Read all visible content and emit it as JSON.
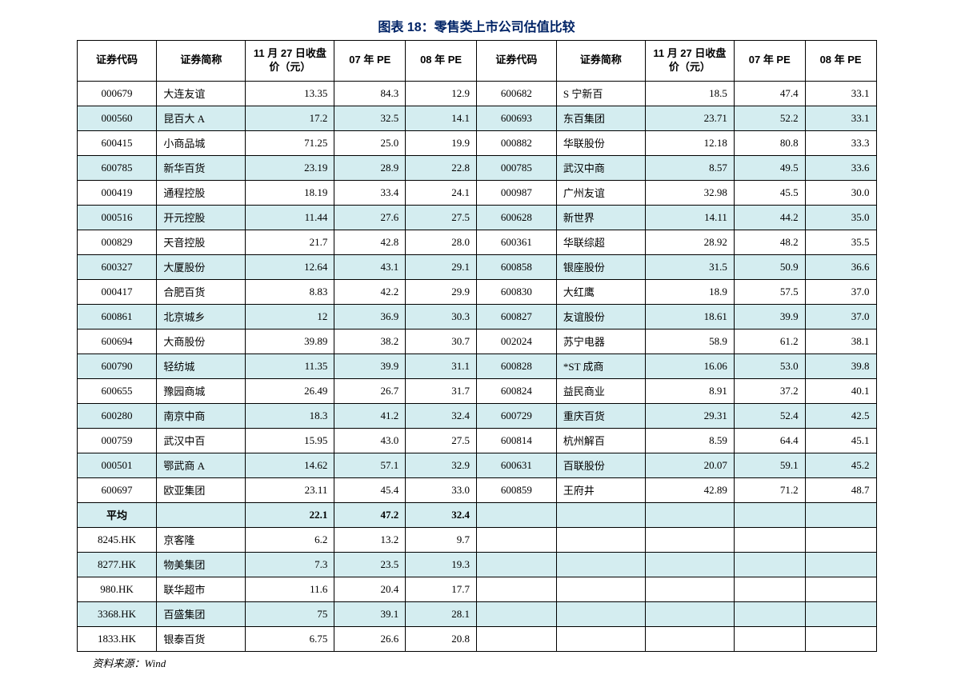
{
  "title": "图表 18：零售类上市公司估值比较",
  "source": "资料来源：Wind",
  "headers": {
    "code": "证券代码",
    "name": "证券简称",
    "price": "11 月 27 日收盘价（元）",
    "pe07": "07 年 PE",
    "pe08": "08 年 PE"
  },
  "rows": [
    [
      "000679",
      "大连友谊",
      "13.35",
      "84.3",
      "12.9",
      "600682",
      "S 宁新百",
      "18.5",
      "47.4",
      "33.1"
    ],
    [
      "000560",
      "昆百大 A",
      "17.2",
      "32.5",
      "14.1",
      "600693",
      "东百集团",
      "23.71",
      "52.2",
      "33.1"
    ],
    [
      "600415",
      "小商品城",
      "71.25",
      "25.0",
      "19.9",
      "000882",
      "华联股份",
      "12.18",
      "80.8",
      "33.3"
    ],
    [
      "600785",
      "新华百货",
      "23.19",
      "28.9",
      "22.8",
      "000785",
      "武汉中商",
      "8.57",
      "49.5",
      "33.6"
    ],
    [
      "000419",
      "通程控股",
      "18.19",
      "33.4",
      "24.1",
      "000987",
      "广州友谊",
      "32.98",
      "45.5",
      "30.0"
    ],
    [
      "000516",
      "开元控股",
      "11.44",
      "27.6",
      "27.5",
      "600628",
      "新世界",
      "14.11",
      "44.2",
      "35.0"
    ],
    [
      "000829",
      "天音控股",
      "21.7",
      "42.8",
      "28.0",
      "600361",
      "华联综超",
      "28.92",
      "48.2",
      "35.5"
    ],
    [
      "600327",
      "大厦股份",
      "12.64",
      "43.1",
      "29.1",
      "600858",
      "银座股份",
      "31.5",
      "50.9",
      "36.6"
    ],
    [
      "000417",
      "合肥百货",
      "8.83",
      "42.2",
      "29.9",
      "600830",
      "大红鹰",
      "18.9",
      "57.5",
      "37.0"
    ],
    [
      "600861",
      "北京城乡",
      "12",
      "36.9",
      "30.3",
      "600827",
      "友谊股份",
      "18.61",
      "39.9",
      "37.0"
    ],
    [
      "600694",
      "大商股份",
      "39.89",
      "38.2",
      "30.7",
      "002024",
      "苏宁电器",
      "58.9",
      "61.2",
      "38.1"
    ],
    [
      "600790",
      "轻纺城",
      "11.35",
      "39.9",
      "31.1",
      "600828",
      "*ST 成商",
      "16.06",
      "53.0",
      "39.8"
    ],
    [
      "600655",
      "豫园商城",
      "26.49",
      "26.7",
      "31.7",
      "600824",
      "益民商业",
      "8.91",
      "37.2",
      "40.1"
    ],
    [
      "600280",
      "南京中商",
      "18.3",
      "41.2",
      "32.4",
      "600729",
      "重庆百货",
      "29.31",
      "52.4",
      "42.5"
    ],
    [
      "000759",
      "武汉中百",
      "15.95",
      "43.0",
      "27.5",
      "600814",
      "杭州解百",
      "8.59",
      "64.4",
      "45.1"
    ],
    [
      "000501",
      "鄂武商 A",
      "14.62",
      "57.1",
      "32.9",
      "600631",
      "百联股份",
      "20.07",
      "59.1",
      "45.2"
    ],
    [
      "600697",
      "欧亚集团",
      "23.11",
      "45.4",
      "33.0",
      "600859",
      "王府井",
      "42.89",
      "71.2",
      "48.7"
    ],
    [
      "平均",
      "",
      "22.1",
      "47.2",
      "32.4",
      "",
      "",
      "",
      "",
      ""
    ],
    [
      "8245.HK",
      "京客隆",
      "6.2",
      "13.2",
      "9.7",
      "",
      "",
      "",
      "",
      ""
    ],
    [
      "8277.HK",
      "物美集团",
      "7.3",
      "23.5",
      "19.3",
      "",
      "",
      "",
      "",
      ""
    ],
    [
      "980.HK",
      "联华超市",
      "11.6",
      "20.4",
      "17.7",
      "",
      "",
      "",
      "",
      ""
    ],
    [
      "3368.HK",
      "百盛集团",
      "75",
      "39.1",
      "28.1",
      "",
      "",
      "",
      "",
      ""
    ],
    [
      "1833.HK",
      "银泰百货",
      "6.75",
      "26.6",
      "20.8",
      "",
      "",
      "",
      "",
      ""
    ]
  ],
  "avg_row_index": 17
}
